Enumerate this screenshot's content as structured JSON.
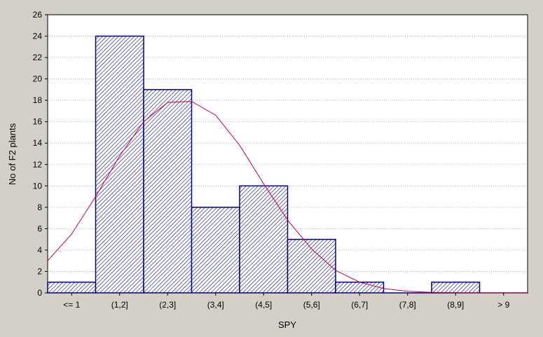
{
  "chart_data": {
    "type": "bar",
    "categories": [
      "<= 1",
      "(1,2]",
      "(2,3]",
      "(3,4]",
      "(4,5]",
      "(5,6]",
      "(6,7]",
      "(7,8]",
      "(8,9]",
      "> 9"
    ],
    "series": [
      {
        "values": [
          1,
          24,
          19,
          8,
          10,
          5,
          1,
          0,
          1,
          0
        ]
      }
    ],
    "fit_curve": {
      "type": "line",
      "x": [
        0,
        0.5,
        1,
        1.5,
        2,
        2.5,
        3,
        3.5,
        4,
        4.5,
        5,
        5.5,
        6,
        6.5,
        7,
        7.5,
        8,
        8.5,
        9,
        9.5,
        10
      ],
      "y": [
        3.0,
        5.5,
        9.0,
        12.8,
        16.0,
        17.8,
        17.9,
        16.6,
        13.8,
        10.2,
        6.8,
        4.1,
        2.1,
        1.0,
        0.4,
        0.15,
        0.05,
        0.01,
        0,
        0,
        0
      ]
    },
    "xlabel": "SPY",
    "ylabel": "No of F2 plants",
    "ylim": [
      0,
      26
    ],
    "yticks": [
      0,
      2,
      4,
      6,
      8,
      10,
      12,
      14,
      16,
      18,
      20,
      22,
      24,
      26
    ],
    "grid": true,
    "colors": {
      "bar_fill": "#ffffff",
      "bar_hatch": "#1a1a8c",
      "bar_edge": "#00008b",
      "curve": "#cc0033",
      "plot_bg": "#ffffff",
      "page_bg": "#d4d0c8",
      "grid": "#a0a0a0"
    }
  }
}
